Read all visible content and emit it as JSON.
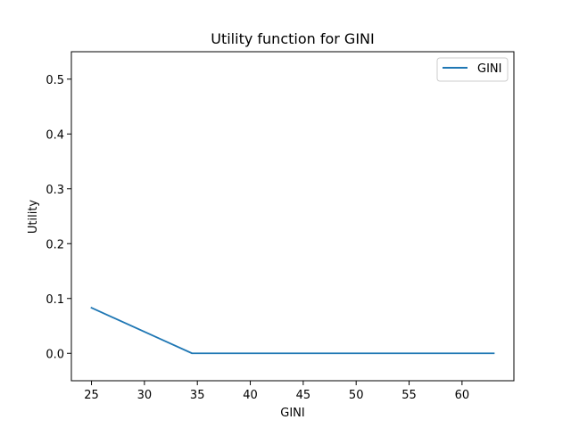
{
  "chart_data": {
    "type": "line",
    "title": "Utility function for GINI",
    "xlabel": "GINI",
    "ylabel": "Utility",
    "xlim": [
      23.1,
      64.9
    ],
    "ylim": [
      -0.05,
      0.55
    ],
    "xticks": [
      25,
      30,
      35,
      40,
      45,
      50,
      55,
      60
    ],
    "yticks": [
      0.0,
      0.1,
      0.2,
      0.3,
      0.4,
      0.5
    ],
    "xtick_labels": [
      "25",
      "30",
      "35",
      "40",
      "45",
      "50",
      "55",
      "60"
    ],
    "ytick_labels": [
      "0.0",
      "0.1",
      "0.2",
      "0.3",
      "0.4",
      "0.5"
    ],
    "grid": false,
    "legend_position": "top-right",
    "series": [
      {
        "name": "GINI",
        "color": "#1f77b4",
        "x": [
          25,
          34.5,
          63
        ],
        "y": [
          0.083,
          0.0,
          0.0
        ]
      }
    ]
  }
}
